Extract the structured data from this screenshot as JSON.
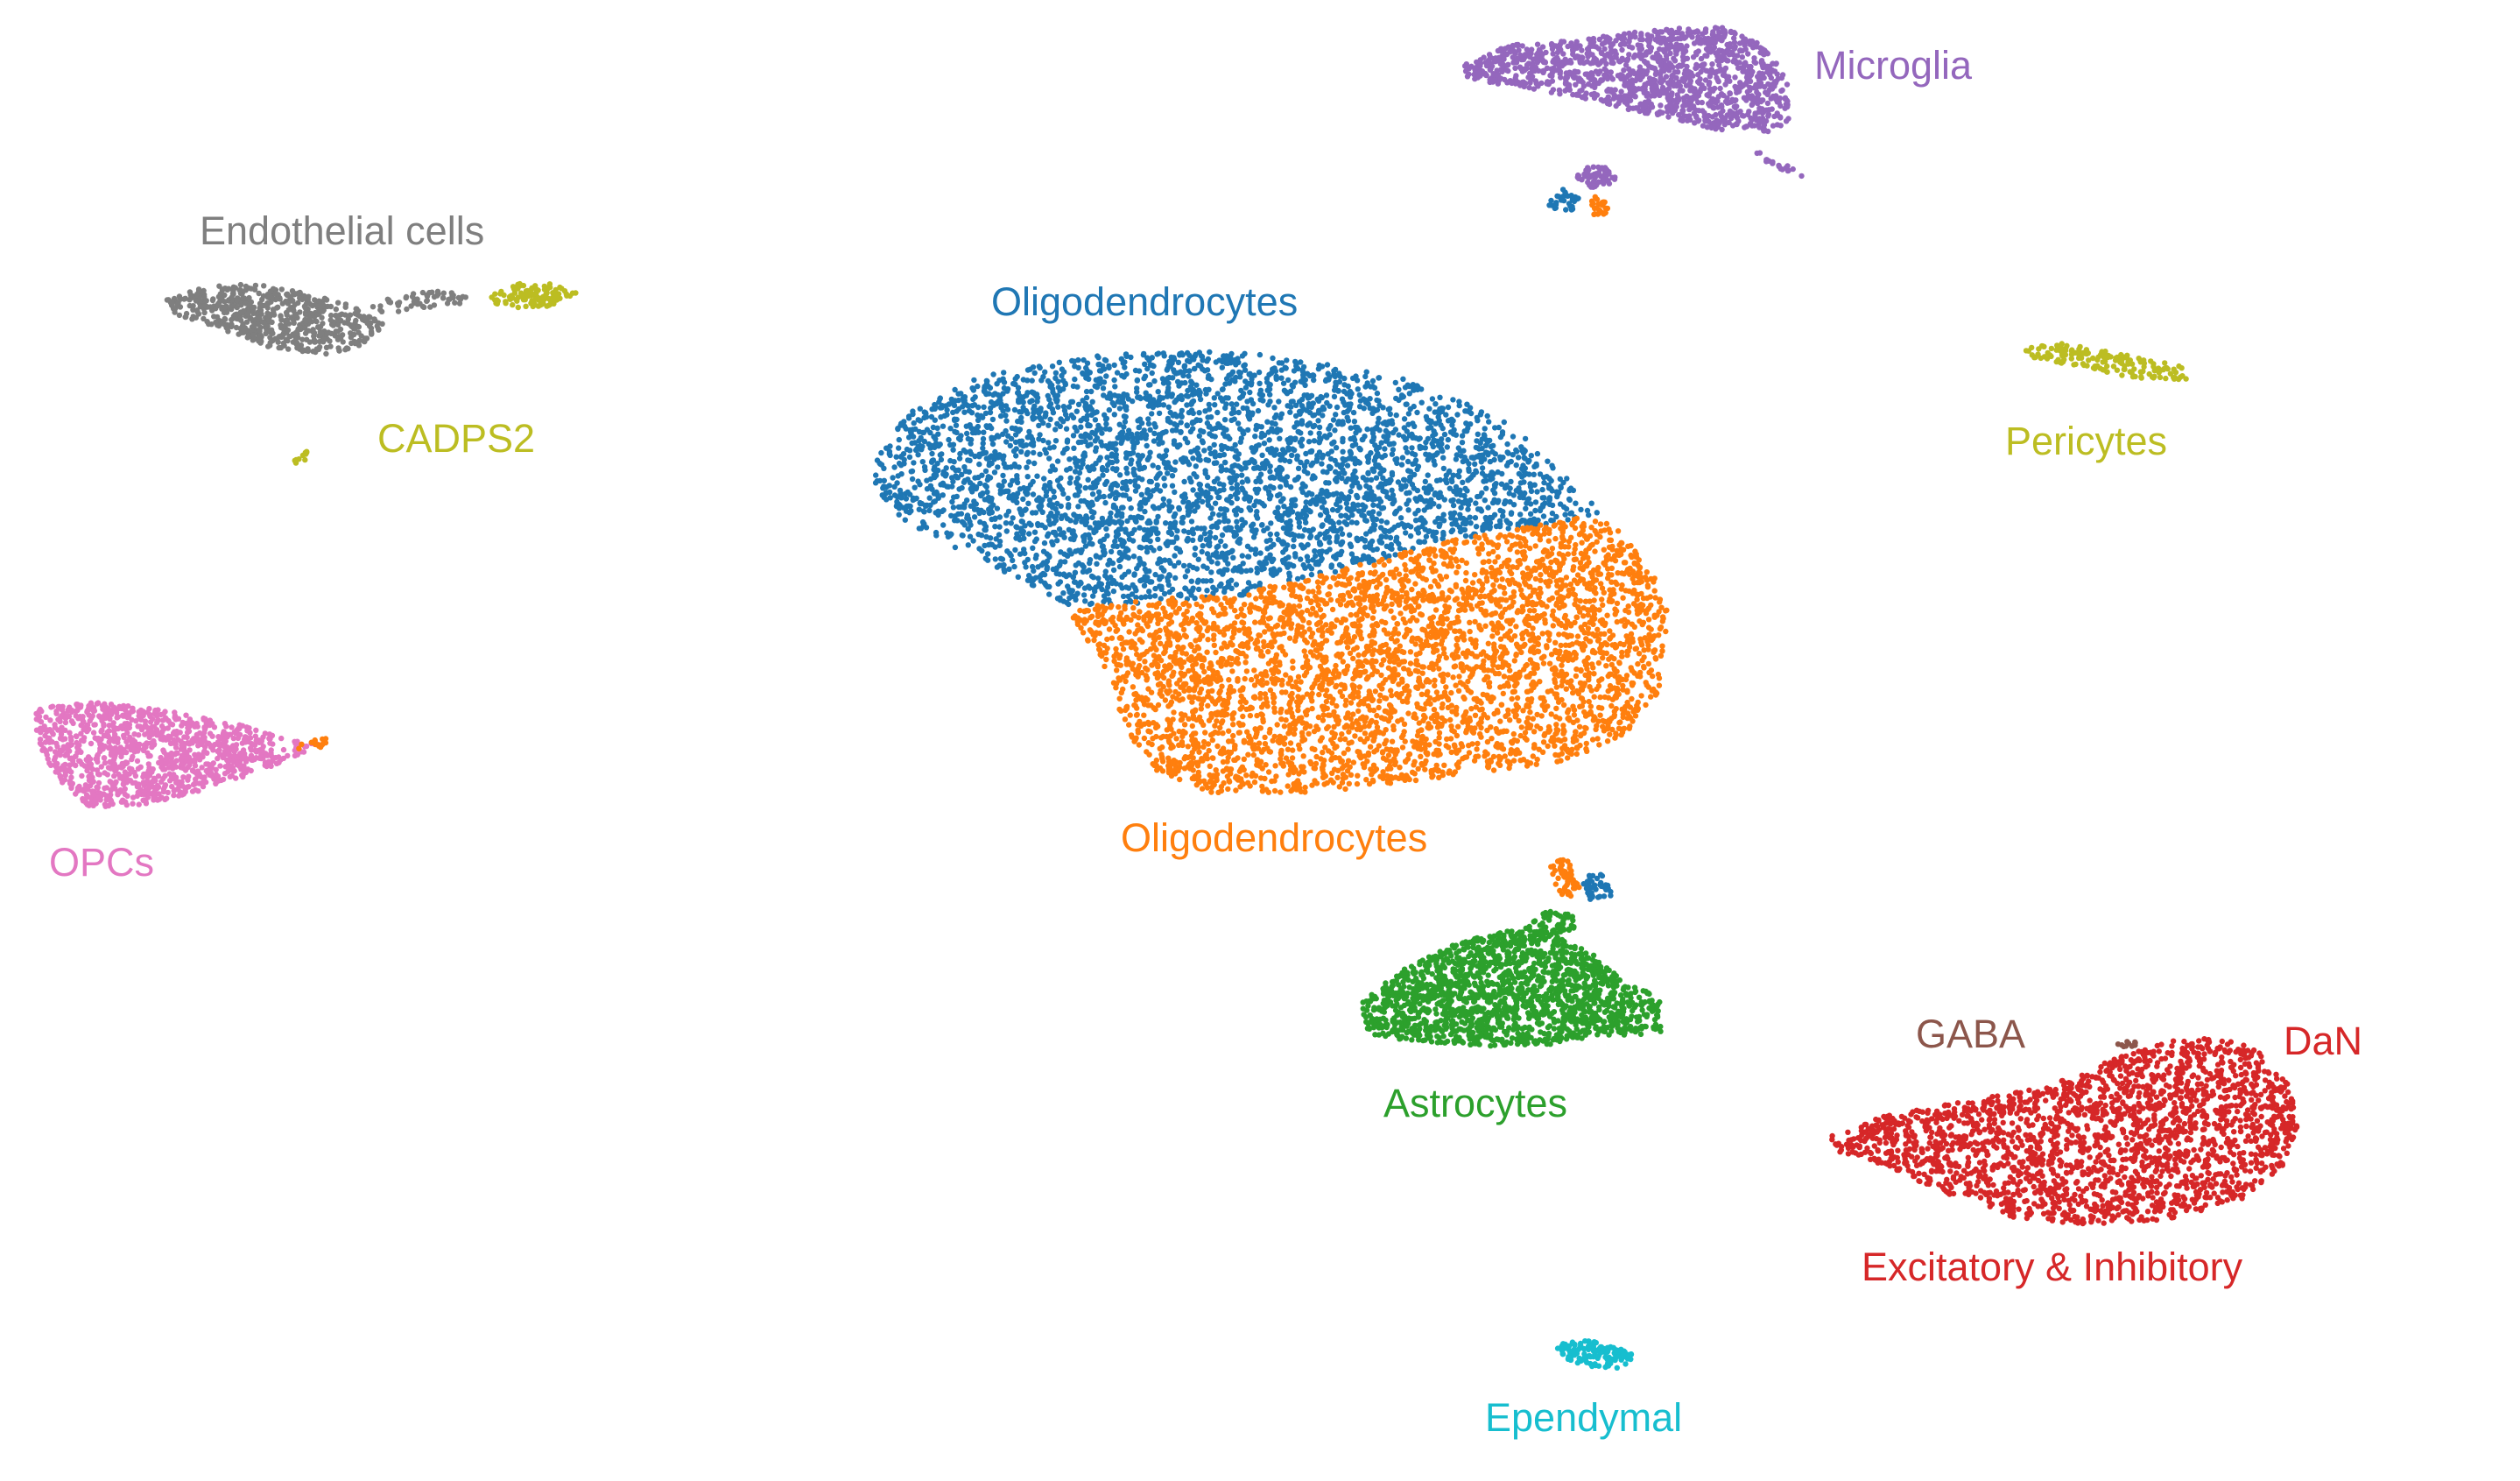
{
  "chart_data": {
    "type": "scatter",
    "title": "",
    "xlabel": "",
    "ylabel": "",
    "grid": false,
    "clusters": [
      {
        "key": "microglia",
        "label": "Microglia",
        "color": "#9467bd"
      },
      {
        "key": "endothelial",
        "label": "Endothelial cells",
        "color": "#7f7f7f"
      },
      {
        "key": "cadps2",
        "label": "CADPS2",
        "color": "#bcbd22"
      },
      {
        "key": "oligo_a",
        "label": "Oligodendrocytes",
        "color": "#1f77b4"
      },
      {
        "key": "oligo_b",
        "label": "Oligodendrocytes",
        "color": "#ff7f0e"
      },
      {
        "key": "pericytes",
        "label": "Pericytes",
        "color": "#bcbd22"
      },
      {
        "key": "opcs",
        "label": "OPCs",
        "color": "#e377c2"
      },
      {
        "key": "astrocytes",
        "label": "Astrocytes",
        "color": "#2ca02c"
      },
      {
        "key": "gaba",
        "label": "GABA",
        "color": "#8c564b"
      },
      {
        "key": "dan",
        "label": "DaN",
        "color": "#d62728"
      },
      {
        "key": "excitatory",
        "label": "Excitatory & Inhibitory",
        "color": "#d62728"
      },
      {
        "key": "ependymal",
        "label": "Ependymal",
        "color": "#17becf"
      }
    ]
  }
}
